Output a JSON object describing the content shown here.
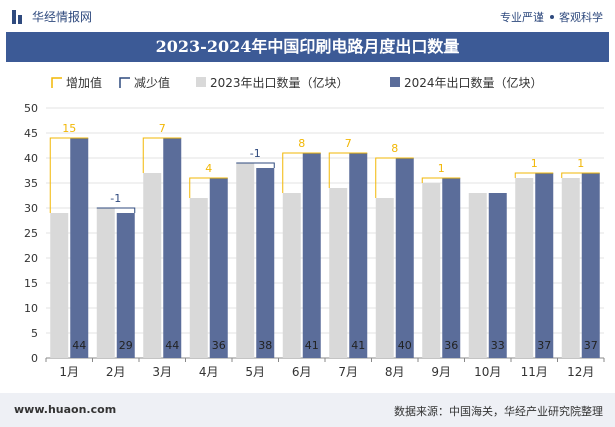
{
  "header": {
    "brand": "华经情报网",
    "slogan_left": "专业严谨",
    "slogan_right": "客观科学",
    "brand_icon": "bar-chart-logo-icon"
  },
  "title": "2023-2024年中国印刷电路月度出口数量",
  "colors": {
    "increase": "#f2b705",
    "decrease": "#2f4a7e",
    "series2023": "#d9d9d9",
    "series2024": "#5b6d9a",
    "title_bar": "#3c5a96"
  },
  "chart_data": {
    "type": "bar",
    "categories": [
      "1月",
      "2月",
      "3月",
      "4月",
      "5月",
      "6月",
      "7月",
      "8月",
      "9月",
      "10月",
      "11月",
      "12月"
    ],
    "series": [
      {
        "name": "2023年出口数量（亿块）",
        "values": [
          29,
          30,
          37,
          32,
          39,
          33,
          34,
          32,
          35,
          33,
          36,
          36
        ]
      },
      {
        "name": "2024年出口数量（亿块）",
        "values": [
          44,
          29,
          44,
          36,
          38,
          41,
          41,
          40,
          36,
          33,
          37,
          37
        ]
      }
    ],
    "changes": [
      15,
      -1,
      7,
      4,
      -1,
      8,
      7,
      8,
      1,
      null,
      1,
      1
    ],
    "legend": [
      "增加值",
      "减少值",
      "2023年出口数量（亿块）",
      "2024年出口数量（亿块）"
    ],
    "ylim": [
      0,
      50
    ],
    "yticks": [
      0,
      5,
      10,
      15,
      20,
      25,
      30,
      35,
      40,
      45,
      50
    ],
    "grid": true,
    "legend_position": "top"
  },
  "footer": {
    "url": "www.huaon.com",
    "source": "数据来源：中国海关，华经产业研究院整理"
  }
}
